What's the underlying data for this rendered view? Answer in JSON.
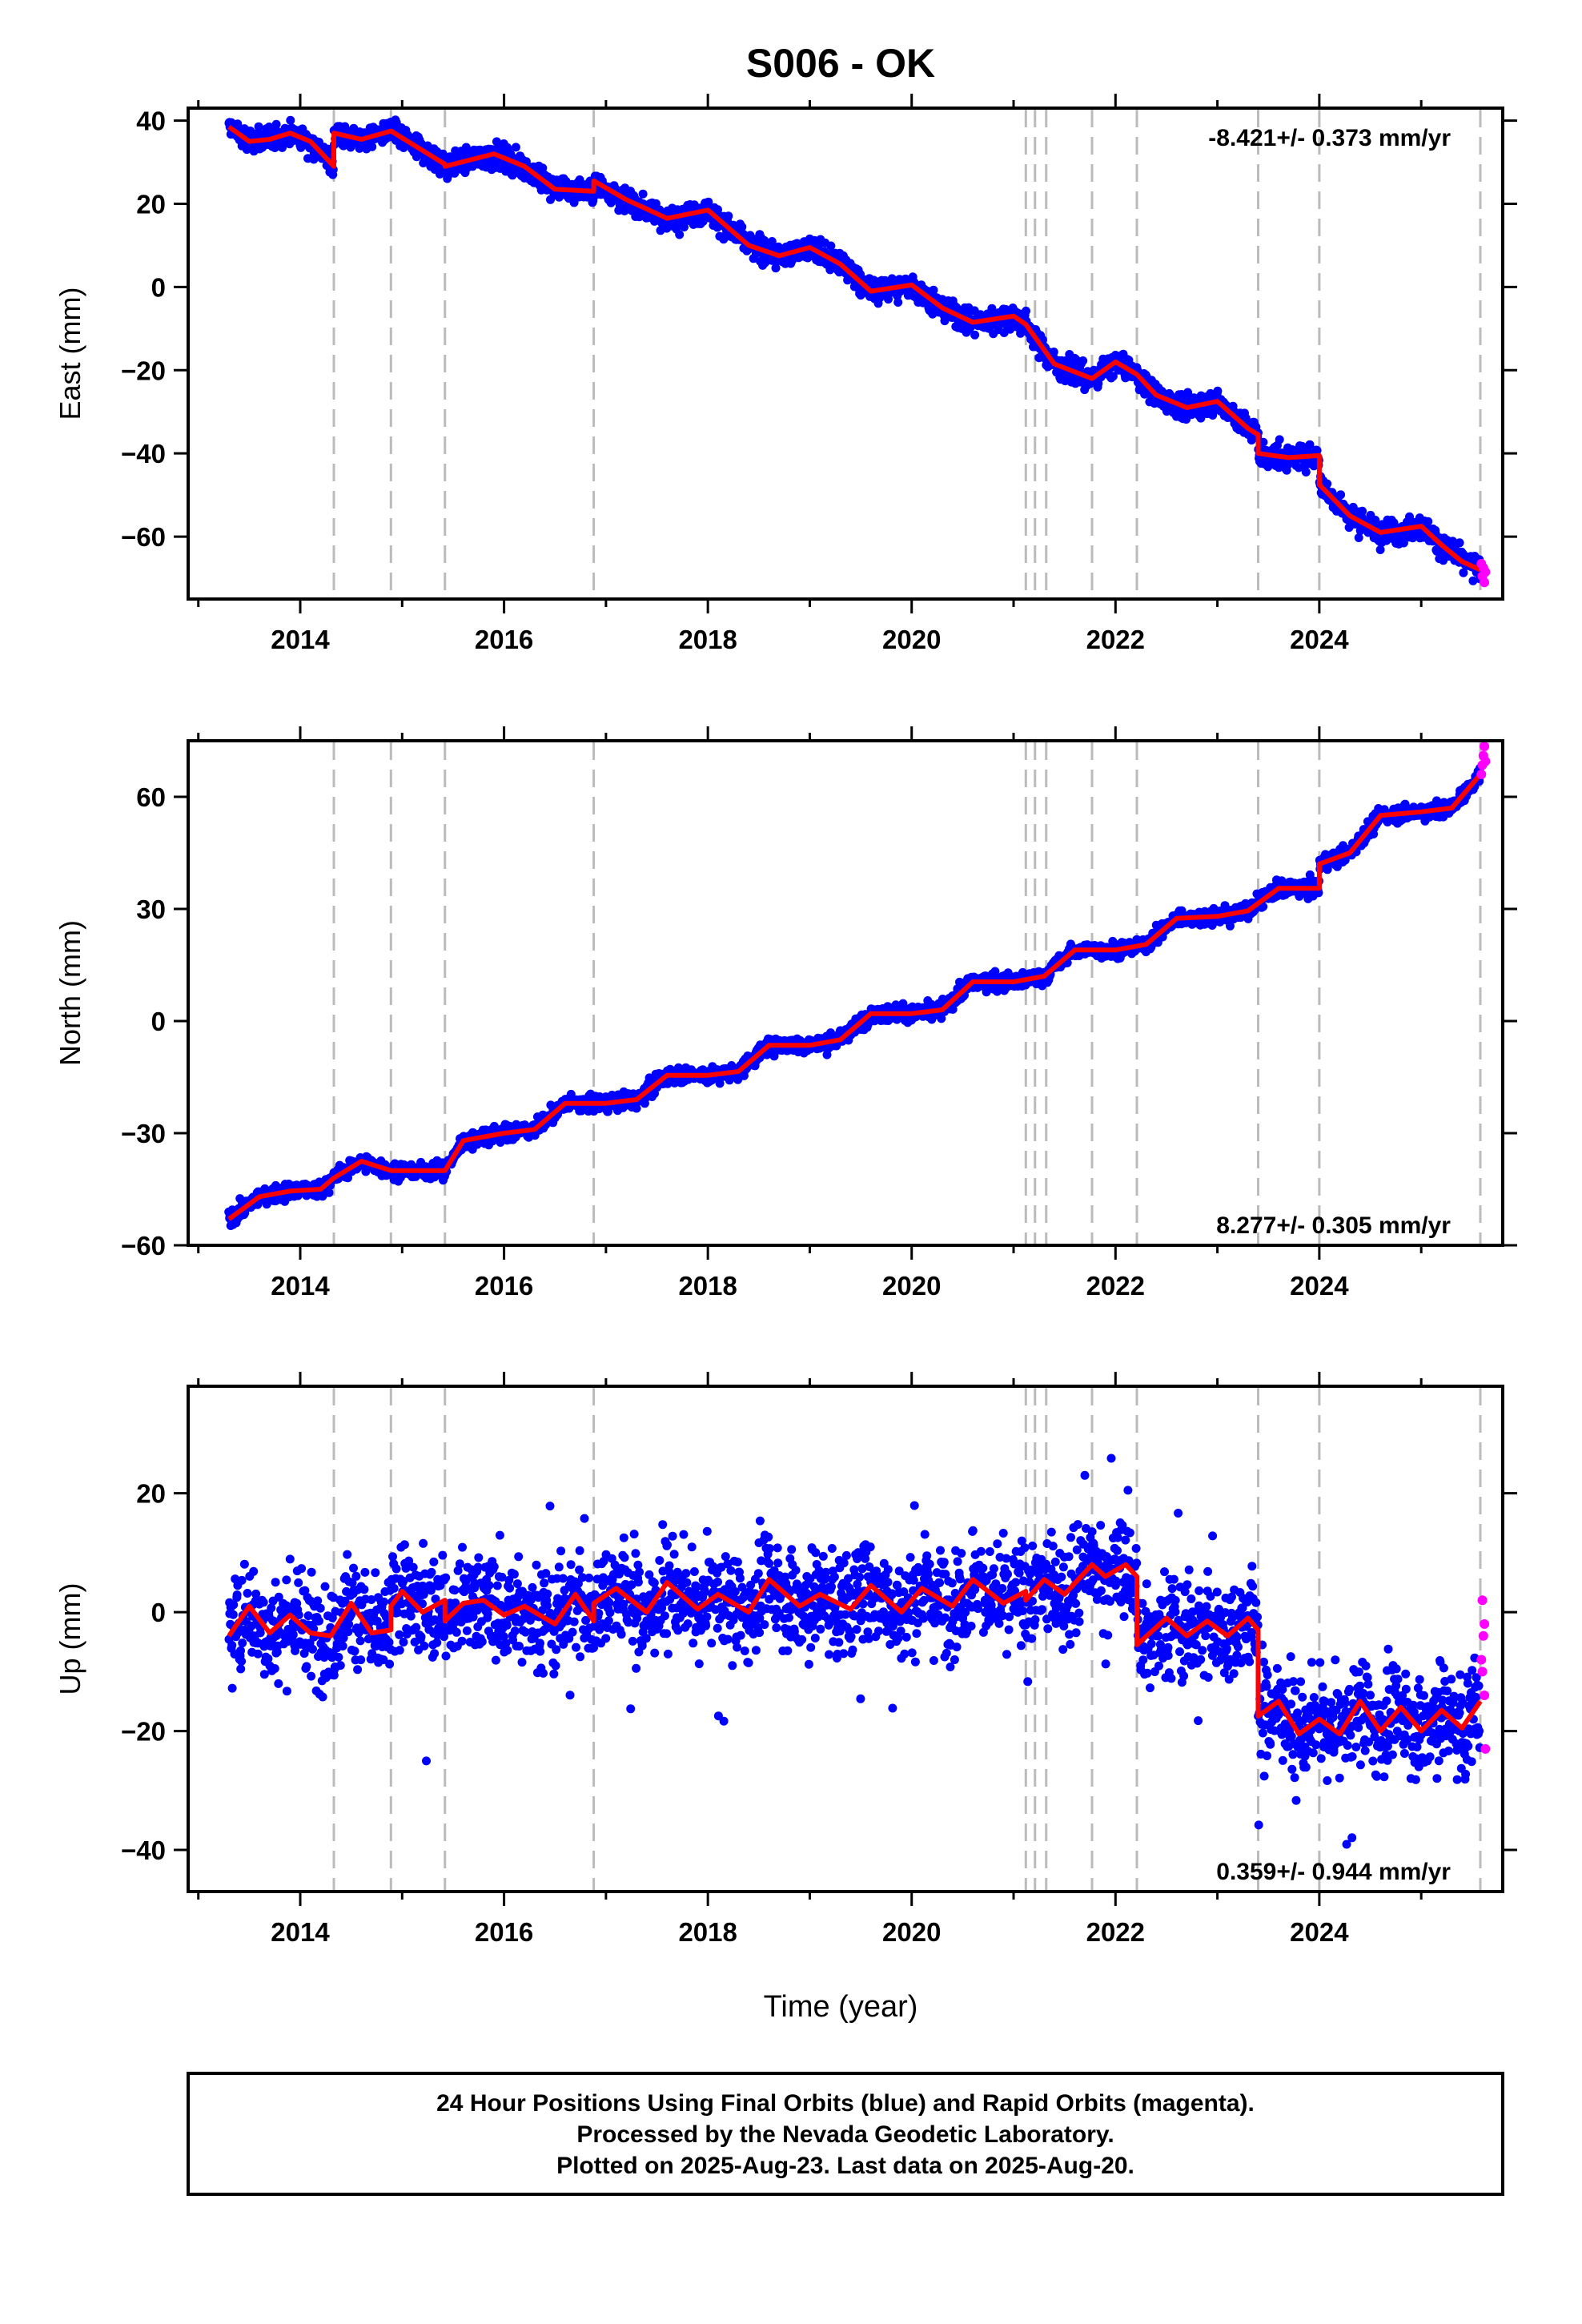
{
  "title": "S006 - OK",
  "colors": {
    "final_orbits": "#0000ff",
    "rapid_orbits": "#ff00ff",
    "model": "#ff0000",
    "event_lines": "#bbbbbb"
  },
  "xlabel": "Time (year)",
  "footer": [
    "24 Hour Positions Using Final Orbits (blue) and Rapid Orbits (magenta).",
    "Processed by the Nevada Geodetic Laboratory.",
    "Plotted on 2025-Aug-23. Last data on 2025-Aug-20."
  ],
  "chart_data": [
    {
      "type": "scatter",
      "ylabel": "East (mm)",
      "rate_label": "-8.421+/- 0.373 mm/yr",
      "legend_position": "top-right",
      "xlim": [
        2012.9,
        2025.8
      ],
      "ylim": [
        -75,
        43
      ],
      "xticks": [
        2014,
        2016,
        2018,
        2020,
        2022,
        2024
      ],
      "yticks": [
        -60,
        -40,
        -20,
        0,
        20,
        40
      ],
      "tick_labels_y": [
        "−60",
        "−40",
        "−20",
        "0",
        "20",
        "40"
      ],
      "event_lines": [
        2014.33,
        2014.89,
        2015.42,
        2016.88,
        2021.12,
        2021.21,
        2021.32,
        2021.77,
        2022.21,
        2023.4,
        2024.0,
        2025.58
      ],
      "model_x": [
        2013.3,
        2013.5,
        2013.7,
        2013.9,
        2014.1,
        2014.33,
        2014.33,
        2014.6,
        2014.89,
        2015.42,
        2015.42,
        2015.9,
        2016.2,
        2016.5,
        2016.88,
        2016.88,
        2017.2,
        2017.6,
        2018.0,
        2018.4,
        2018.7,
        2019.0,
        2019.3,
        2019.6,
        2020.0,
        2020.3,
        2020.6,
        2021.0,
        2021.12,
        2021.4,
        2021.77,
        2022.0,
        2022.21,
        2022.4,
        2022.7,
        2023.0,
        2023.3,
        2023.4,
        2023.4,
        2023.7,
        2024.0,
        2024.0,
        2024.3,
        2024.6,
        2025.0,
        2025.2,
        2025.4,
        2025.58
      ],
      "model_y": [
        38.5,
        35.0,
        35.5,
        37.0,
        35.0,
        29.0,
        37.0,
        35.5,
        37.5,
        29.5,
        29.0,
        32.0,
        29.0,
        23.5,
        23.0,
        25.5,
        21.0,
        16.5,
        18.5,
        10.0,
        7.5,
        9.5,
        5.5,
        -1.0,
        0.5,
        -5.0,
        -8.5,
        -7.0,
        -9.0,
        -18.5,
        -22.0,
        -18.0,
        -21.0,
        -26.0,
        -29.0,
        -27.5,
        -34.0,
        -35.5,
        -40.0,
        -41.0,
        -40.5,
        -47.5,
        -55.0,
        -59.0,
        -57.5,
        -62.0,
        -66.0,
        -68.0
      ],
      "rapid_x": [
        2025.59,
        2025.6,
        2025.61,
        2025.62,
        2025.63
      ],
      "rapid_y": [
        -66.5,
        -69.5,
        -67.5,
        -71.0,
        -68.5
      ],
      "scatter_noise_mm": 2.0
    },
    {
      "type": "scatter",
      "ylabel": "North (mm)",
      "rate_label": "8.277+/- 0.305 mm/yr",
      "legend_position": "bottom-right",
      "xlim": [
        2012.9,
        2025.8
      ],
      "ylim": [
        -60,
        75
      ],
      "xticks": [
        2014,
        2016,
        2018,
        2020,
        2022,
        2024
      ],
      "yticks": [
        -60,
        -30,
        0,
        30,
        60
      ],
      "tick_labels_y": [
        "−60",
        "−30",
        "0",
        "30",
        "60"
      ],
      "event_lines": [
        2014.33,
        2014.89,
        2015.42,
        2016.88,
        2021.12,
        2021.21,
        2021.32,
        2021.77,
        2022.21,
        2023.4,
        2024.0,
        2025.58
      ],
      "model_x": [
        2013.3,
        2013.6,
        2013.9,
        2014.2,
        2014.33,
        2014.6,
        2014.89,
        2015.42,
        2015.6,
        2016.0,
        2016.3,
        2016.6,
        2017.0,
        2017.3,
        2017.6,
        2018.0,
        2018.3,
        2018.6,
        2019.0,
        2019.3,
        2019.6,
        2020.0,
        2020.3,
        2020.6,
        2021.0,
        2021.3,
        2021.6,
        2022.0,
        2022.3,
        2022.6,
        2023.0,
        2023.3,
        2023.6,
        2024.0,
        2024.0,
        2024.3,
        2024.6,
        2025.0,
        2025.3,
        2025.58
      ],
      "model_y": [
        -53.0,
        -47.0,
        -45.5,
        -45.0,
        -42.0,
        -37.5,
        -40.0,
        -40.0,
        -32.0,
        -30.0,
        -29.0,
        -22.0,
        -22.0,
        -21.0,
        -14.5,
        -14.5,
        -13.5,
        -6.5,
        -6.5,
        -5.0,
        2.0,
        2.0,
        3.0,
        10.5,
        10.5,
        12.0,
        19.0,
        19.0,
        20.5,
        27.5,
        28.0,
        29.5,
        35.5,
        35.5,
        42.0,
        45.0,
        55.0,
        56.0,
        57.0,
        66.0
      ],
      "rapid_x": [
        2025.59,
        2025.6,
        2025.61,
        2025.62,
        2025.63
      ],
      "rapid_y": [
        66.0,
        68.5,
        71.0,
        73.5,
        69.5
      ],
      "scatter_noise_mm": 1.5
    },
    {
      "type": "scatter",
      "ylabel": "Up (mm)",
      "rate_label": "0.359+/- 0.944 mm/yr",
      "legend_position": "bottom-right",
      "xlim": [
        2012.9,
        2025.8
      ],
      "ylim": [
        -47,
        38
      ],
      "xticks": [
        2014,
        2016,
        2018,
        2020,
        2022,
        2024
      ],
      "yticks": [
        -40,
        -20,
        0,
        20
      ],
      "tick_labels_y": [
        "−40",
        "−20",
        "0",
        "20"
      ],
      "event_lines": [
        2014.33,
        2014.89,
        2015.42,
        2016.88,
        2021.12,
        2021.21,
        2021.32,
        2021.77,
        2022.21,
        2023.4,
        2024.0,
        2025.58
      ],
      "model_x": [
        2013.3,
        2013.5,
        2013.7,
        2013.9,
        2014.1,
        2014.3,
        2014.5,
        2014.7,
        2014.89,
        2014.89,
        2015.0,
        2015.2,
        2015.42,
        2015.42,
        2015.6,
        2015.8,
        2016.0,
        2016.2,
        2016.5,
        2016.7,
        2016.88,
        2016.88,
        2017.1,
        2017.4,
        2017.6,
        2017.9,
        2018.1,
        2018.4,
        2018.6,
        2018.9,
        2019.1,
        2019.4,
        2019.6,
        2019.9,
        2020.1,
        2020.4,
        2020.6,
        2020.9,
        2021.12,
        2021.12,
        2021.3,
        2021.5,
        2021.77,
        2021.9,
        2022.1,
        2022.21,
        2022.21,
        2022.5,
        2022.7,
        2022.9,
        2023.1,
        2023.3,
        2023.4,
        2023.4,
        2023.6,
        2023.8,
        2024.0,
        2024.2,
        2024.4,
        2024.6,
        2024.8,
        2025.0,
        2025.2,
        2025.4,
        2025.58
      ],
      "model_y": [
        -4.0,
        1.0,
        -3.5,
        -0.5,
        -3.5,
        -4.0,
        1.5,
        -3.5,
        -3.0,
        1.0,
        3.5,
        0.0,
        2.0,
        -1.5,
        1.5,
        2.0,
        -0.5,
        1.0,
        -2.0,
        3.0,
        -1.5,
        1.5,
        4.0,
        0.0,
        5.0,
        0.5,
        3.0,
        0.0,
        5.5,
        1.0,
        3.0,
        0.5,
        4.5,
        0.0,
        4.0,
        1.0,
        5.5,
        1.5,
        3.5,
        2.0,
        5.5,
        3.0,
        8.0,
        6.0,
        8.0,
        6.0,
        -5.5,
        -1.0,
        -4.0,
        -1.5,
        -4.0,
        -1.0,
        -3.0,
        -17.5,
        -15.0,
        -20.5,
        -18.0,
        -20.5,
        -15.0,
        -20.0,
        -16.0,
        -20.0,
        -16.5,
        -19.5,
        -15.0
      ],
      "rapid_x": [
        2025.59,
        2025.6,
        2025.61,
        2025.62,
        2025.63,
        2025.6,
        2025.62
      ],
      "rapid_y": [
        -8.0,
        2.0,
        -4.0,
        -14.0,
        -23.0,
        -10.0,
        -2.0
      ],
      "scatter_noise_mm": 6.0
    }
  ]
}
